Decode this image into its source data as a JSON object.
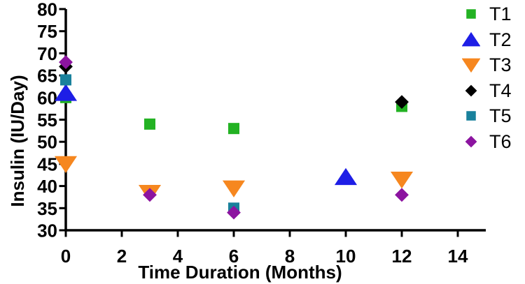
{
  "chart_data": {
    "type": "scatter",
    "title": "",
    "xlabel": "Time Duration (Months)",
    "ylabel": "Insulin (IU/Day)",
    "xlim": [
      0,
      15
    ],
    "ylim": [
      30,
      80
    ],
    "xticks": [
      0,
      2,
      4,
      6,
      8,
      10,
      12,
      14
    ],
    "yticks": [
      30,
      35,
      40,
      45,
      50,
      55,
      60,
      65,
      70,
      75,
      80
    ],
    "grid": false,
    "legend_position": "right",
    "axis_color": "#000000",
    "background_color": "#ffffff",
    "series": [
      {
        "name": "T1",
        "marker": "square",
        "color": "#23B223",
        "points": [
          [
            0,
            60
          ],
          [
            3,
            54
          ],
          [
            6,
            53
          ],
          [
            12,
            58
          ]
        ]
      },
      {
        "name": "T2",
        "marker": "triangle-up",
        "color": "#1E1EE6",
        "points": [
          [
            0,
            61
          ],
          [
            10,
            42
          ]
        ]
      },
      {
        "name": "T3",
        "marker": "triangle-down",
        "color": "#F6871F",
        "points": [
          [
            0,
            45
          ],
          [
            3,
            38.5
          ],
          [
            6,
            39.5
          ],
          [
            12,
            41.5
          ]
        ]
      },
      {
        "name": "T4",
        "marker": "diamond",
        "color": "#000000",
        "points": [
          [
            0,
            67
          ],
          [
            12,
            59
          ]
        ]
      },
      {
        "name": "T5",
        "marker": "square",
        "color": "#19819C",
        "points": [
          [
            0,
            64
          ],
          [
            6,
            35
          ]
        ]
      },
      {
        "name": "T6",
        "marker": "diamond",
        "color": "#8C14A0",
        "points": [
          [
            0,
            68
          ],
          [
            3,
            38
          ],
          [
            6,
            34
          ],
          [
            12,
            38
          ]
        ]
      }
    ]
  }
}
